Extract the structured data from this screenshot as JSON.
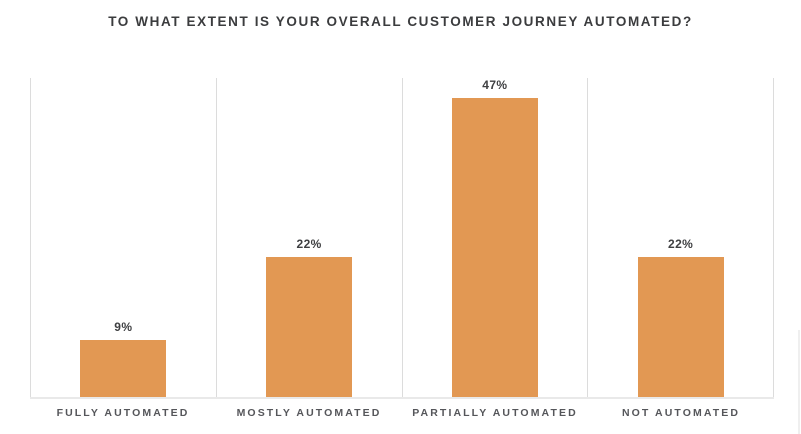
{
  "chart_data": {
    "type": "bar",
    "title": "TO WHAT EXTENT IS YOUR OVERALL CUSTOMER JOURNEY AUTOMATED?",
    "categories": [
      "FULLY AUTOMATED",
      "MOSTLY AUTOMATED",
      "PARTIALLY AUTOMATED",
      "NOT AUTOMATED"
    ],
    "values": [
      9,
      22,
      47,
      22
    ],
    "value_labels": [
      "9%",
      "22%",
      "47%",
      "22%"
    ],
    "xlabel": "",
    "ylabel": "",
    "ylim": [
      0,
      50
    ],
    "grid": "vertical column separators only, no horizontal gridlines, no y-axis ticks",
    "legend": "none",
    "colors": {
      "bar": "#e29853",
      "gridline": "#dcdcdc",
      "baseline": "#e9e9e9",
      "title_text": "#3b3c3e",
      "value_label_text": "#3e3f41",
      "category_label_text": "#55565a",
      "background": "#ffffff"
    }
  }
}
